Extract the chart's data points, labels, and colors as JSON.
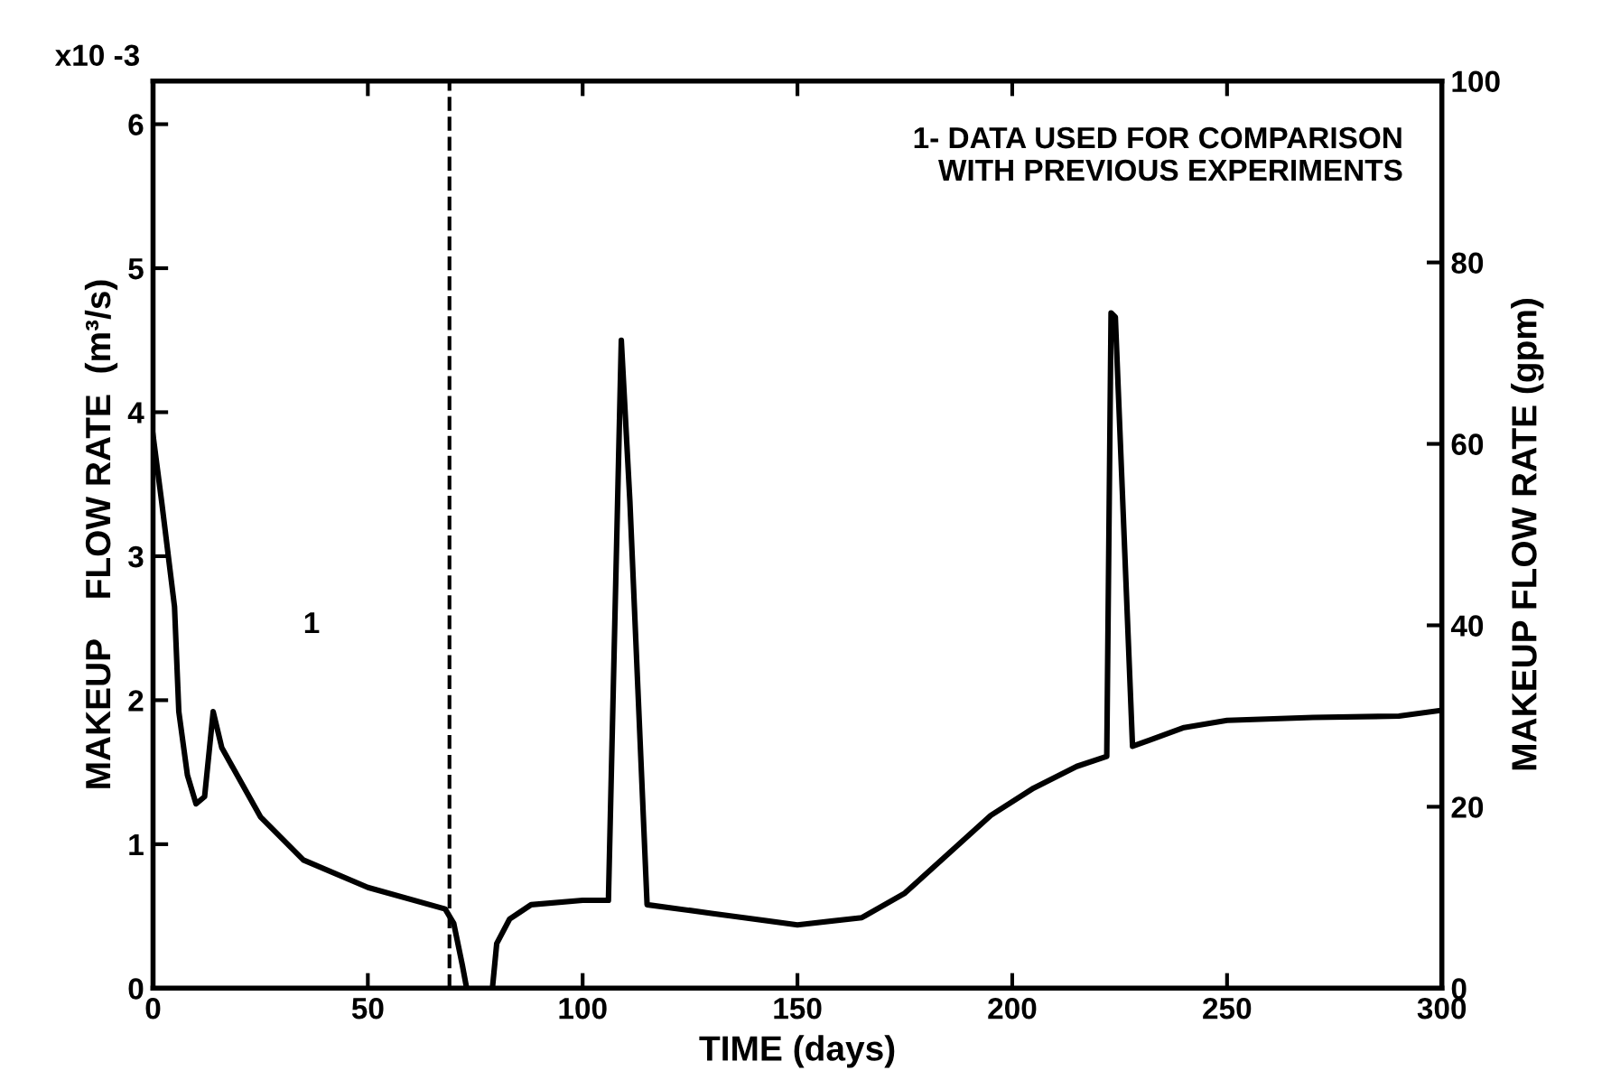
{
  "chart_data": {
    "type": "line",
    "xlabel": "TIME (days)",
    "ylabel": "MAKEUP    FLOW RATE  (m³/s)",
    "y2label": "MAKEUP FLOW RATE (gpm)",
    "x": [
      0,
      2,
      5,
      6,
      8,
      10,
      12,
      14,
      16,
      25,
      35,
      50,
      68,
      70,
      72,
      73,
      76,
      79,
      80,
      83,
      88,
      100,
      106,
      109,
      111,
      115,
      130,
      150,
      165,
      175,
      185,
      195,
      205,
      215,
      222,
      223,
      224,
      228,
      240,
      250,
      270,
      290,
      300
    ],
    "series": [
      {
        "color": "#000000",
        "values": [
          3.84,
          3.38,
          2.65,
          1.92,
          1.48,
          1.28,
          1.33,
          1.92,
          1.67,
          1.19,
          0.89,
          0.7,
          0.55,
          0.45,
          0.16,
          0,
          null,
          0,
          0.31,
          0.48,
          0.58,
          0.61,
          0.61,
          4.5,
          3.38,
          0.58,
          0.52,
          0.44,
          0.49,
          0.66,
          0.93,
          1.2,
          1.39,
          1.54,
          1.61,
          4.69,
          4.66,
          1.68,
          1.81,
          1.86,
          1.88,
          1.89,
          1.93
        ]
      }
    ],
    "xlim": [
      0,
      300
    ],
    "xticks": [
      0,
      50,
      100,
      150,
      200,
      250,
      300
    ],
    "ylim": [
      0,
      6.3
    ],
    "yticks": [
      0,
      1,
      2,
      3,
      4,
      5,
      6
    ],
    "y2lim": [
      0,
      100
    ],
    "y2ticks": [
      0,
      20,
      40,
      60,
      80,
      100
    ],
    "ref_lines": [
      {
        "axis": "x",
        "value": 69,
        "line_style": "dashed",
        "color": "#000000"
      }
    ],
    "annotations": [
      "x10 -3",
      "1- DATA USED FOR COMPARISON\n    WITH PREVIOUS EXPERIMENTS",
      "1"
    ],
    "grid": false,
    "legend": false,
    "marker": "none",
    "line_style": "solid"
  }
}
